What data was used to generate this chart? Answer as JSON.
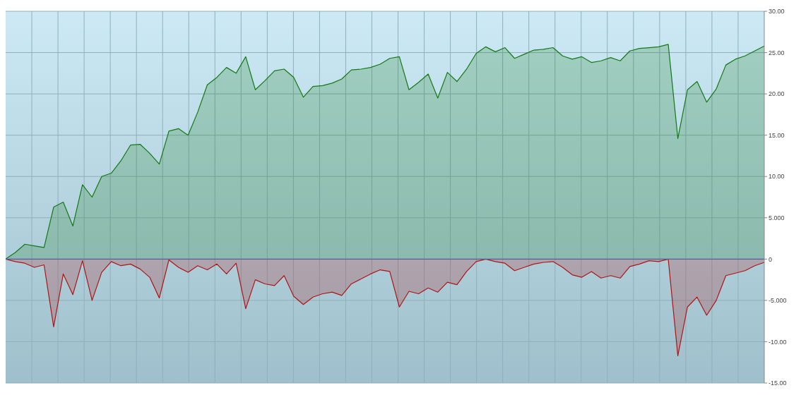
{
  "chart_data": {
    "type": "area",
    "categories": [
      null,
      null,
      null,
      null,
      null,
      null,
      null,
      null,
      null,
      null,
      null,
      null,
      null,
      null,
      null,
      null,
      null,
      null,
      null,
      null,
      null,
      null,
      null,
      null,
      null,
      null,
      null,
      null,
      null,
      null,
      null,
      null,
      null,
      null,
      null,
      null,
      null,
      null,
      null,
      null,
      null,
      null,
      null,
      null,
      null,
      null,
      null,
      null,
      null,
      null,
      null,
      null,
      null,
      null,
      null,
      null,
      null,
      null,
      null,
      null,
      null,
      null,
      null,
      null,
      null,
      null,
      null,
      null,
      null,
      null,
      null,
      null,
      null,
      null,
      null,
      null,
      null,
      null,
      null,
      null
    ],
    "series": [
      {
        "color": "#137a13",
        "values": [
          0,
          0.8,
          1.8,
          1.6,
          1.4,
          6.3,
          6.9,
          4.0,
          9.0,
          7.5,
          10.0,
          10.4,
          11.9,
          13.8,
          13.9,
          12.8,
          11.5,
          15.5,
          15.8,
          15.0,
          17.8,
          21.1,
          22.0,
          23.2,
          22.5,
          24.5,
          20.5,
          21.6,
          22.8,
          23.0,
          22.0,
          19.6,
          20.9,
          21.0,
          21.3,
          21.8,
          22.9,
          23.0,
          23.2,
          23.6,
          24.3,
          24.5,
          20.5,
          21.4,
          22.4,
          19.5,
          22.6,
          21.5,
          23.0,
          24.9,
          25.7,
          25.1,
          25.6,
          24.3,
          24.8,
          25.3,
          25.4,
          25.6,
          24.6,
          24.2,
          24.5,
          23.8,
          24.0,
          24.4,
          24.0,
          25.2,
          25.5,
          25.6,
          25.7,
          26.0,
          14.6,
          20.5,
          21.5,
          19.0,
          20.6,
          23.5,
          24.2,
          24.6,
          25.2,
          25.8
        ]
      },
      {
        "color": "#b01414",
        "values": [
          0,
          -0.3,
          -0.5,
          -1.0,
          -0.7,
          -8.2,
          -1.8,
          -4.3,
          -0.2,
          -5.0,
          -1.6,
          -0.3,
          -0.8,
          -0.6,
          -1.2,
          -2.2,
          -4.7,
          -0.1,
          -1.0,
          -1.6,
          -0.8,
          -1.3,
          -0.6,
          -1.8,
          -0.5,
          -6.0,
          -2.5,
          -3.0,
          -3.2,
          -2.0,
          -4.5,
          -5.5,
          -4.6,
          -4.2,
          -4.0,
          -4.4,
          -3.0,
          -2.4,
          -1.8,
          -1.3,
          -1.5,
          -5.8,
          -3.9,
          -4.2,
          -3.5,
          -4.0,
          -2.8,
          -3.1,
          -1.5,
          -0.3,
          0,
          -0.3,
          -0.5,
          -1.4,
          -1.0,
          -0.6,
          -0.4,
          -0.3,
          -1.0,
          -1.9,
          -2.2,
          -1.5,
          -2.3,
          -2.0,
          -2.3,
          -0.9,
          -0.6,
          -0.2,
          -0.3,
          0,
          -11.7,
          -5.8,
          -4.6,
          -6.8,
          -5.0,
          -2.0,
          -1.7,
          -1.4,
          -0.8,
          -0.4
        ]
      }
    ],
    "ylim": [
      -15,
      30
    ],
    "yticks": [
      {
        "value": 30,
        "label": "30.00"
      },
      {
        "value": 25,
        "label": "25.00"
      },
      {
        "value": 20,
        "label": "20.00"
      },
      {
        "value": 15,
        "label": "15.00"
      },
      {
        "value": 10,
        "label": "10.00"
      },
      {
        "value": 5,
        "label": "5.000"
      },
      0,
      {
        "value": -5,
        "label": "-5.000"
      },
      {
        "value": -10,
        "label": "-10.00"
      },
      {
        "value": -15,
        "label": "-15.00"
      }
    ],
    "ref_lines": [
      {
        "axis": "y",
        "value": 0,
        "color": "#5c5ca0"
      }
    ],
    "grid": true
  }
}
